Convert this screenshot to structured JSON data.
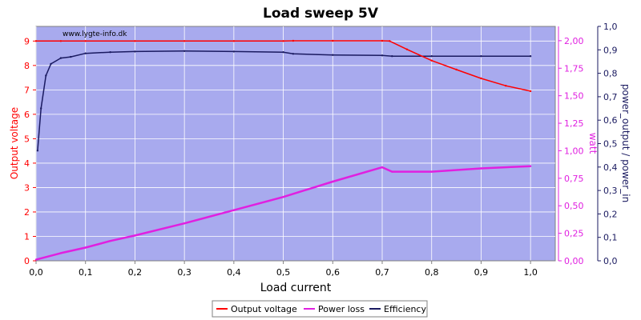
{
  "chart_data": {
    "type": "line",
    "title": "Load sweep 5V",
    "watermark": "www.lygte-info.dk",
    "xlabel": "Load current",
    "xlim": [
      0,
      1.05
    ],
    "x_ticks": [
      "0,0",
      "0,1",
      "0,2",
      "0,3",
      "0,4",
      "0,5",
      "0,6",
      "0,7",
      "0,8",
      "0,9",
      "1,0"
    ],
    "y_left": {
      "label": "Output voltage",
      "lim": [
        0,
        9.6
      ],
      "ticks": [
        "0",
        "1",
        "2",
        "3",
        "4",
        "5",
        "6",
        "7",
        "8",
        "9"
      ],
      "color": "#ff0000"
    },
    "y_mid": {
      "label": "watt",
      "lim": [
        0,
        2.13
      ],
      "ticks": [
        "0,00",
        "0,25",
        "0,50",
        "0,75",
        "1,00",
        "1,25",
        "1,50",
        "1,75",
        "2,00"
      ],
      "color": "#e020e0"
    },
    "y_right": {
      "label": "power_output / power_in",
      "lim": [
        0,
        1.0
      ],
      "ticks": [
        "0,0",
        "0,1",
        "0,2",
        "0,3",
        "0,4",
        "0,5",
        "0,6",
        "0,7",
        "0,8",
        "0,9",
        "1,0"
      ],
      "color": "#1a1a60"
    },
    "grid": true,
    "legend_position": "bottom-center",
    "colors": {
      "plot_background": "#a8aaee",
      "grid": "#ffffff"
    },
    "series": [
      {
        "name": "Output voltage",
        "axis": "left",
        "color": "#ff0000",
        "x": [
          0.0,
          0.05,
          0.1,
          0.2,
          0.3,
          0.4,
          0.5,
          0.52,
          0.6,
          0.7,
          0.715,
          0.75,
          0.8,
          0.85,
          0.9,
          0.95,
          1.0
        ],
        "y": [
          9.0,
          9.0,
          9.0,
          9.0,
          9.0,
          9.0,
          9.0,
          9.01,
          9.01,
          9.01,
          9.0,
          8.66,
          8.2,
          7.83,
          7.47,
          7.17,
          6.95
        ]
      },
      {
        "name": "Power loss",
        "axis": "mid",
        "color": "#e020e0",
        "x": [
          0.0,
          0.05,
          0.1,
          0.15,
          0.2,
          0.3,
          0.4,
          0.5,
          0.6,
          0.7,
          0.72,
          0.8,
          0.9,
          1.0
        ],
        "y": [
          0.01,
          0.07,
          0.12,
          0.18,
          0.23,
          0.34,
          0.46,
          0.58,
          0.72,
          0.85,
          0.81,
          0.81,
          0.84,
          0.86
        ]
      },
      {
        "name": "Efficiency",
        "axis": "right",
        "color": "#1a1a60",
        "x": [
          0.003,
          0.01,
          0.02,
          0.03,
          0.05,
          0.07,
          0.1,
          0.15,
          0.2,
          0.3,
          0.4,
          0.5,
          0.52,
          0.6,
          0.7,
          0.72,
          0.8,
          0.9,
          1.0
        ],
        "y": [
          0.47,
          0.65,
          0.79,
          0.84,
          0.865,
          0.87,
          0.885,
          0.89,
          0.893,
          0.895,
          0.893,
          0.89,
          0.883,
          0.878,
          0.876,
          0.873,
          0.873,
          0.873,
          0.873
        ]
      }
    ]
  }
}
